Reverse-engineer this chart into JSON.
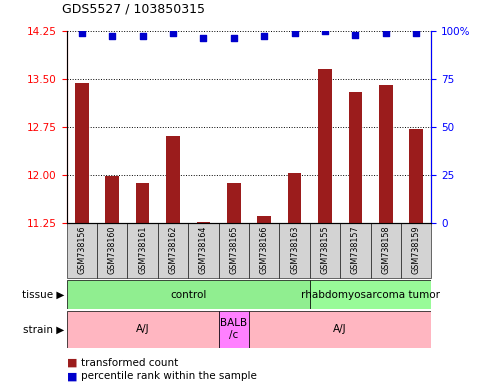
{
  "title": "GDS5527 / 103850315",
  "samples": [
    "GSM738156",
    "GSM738160",
    "GSM738161",
    "GSM738162",
    "GSM738164",
    "GSM738165",
    "GSM738166",
    "GSM738163",
    "GSM738155",
    "GSM738157",
    "GSM738158",
    "GSM738159"
  ],
  "bar_values": [
    13.43,
    11.98,
    11.87,
    12.6,
    11.26,
    11.87,
    11.35,
    12.03,
    13.65,
    13.3,
    13.4,
    12.72
  ],
  "dot_values": [
    99,
    97,
    97,
    99,
    96,
    96,
    97,
    99,
    100,
    98,
    99,
    99
  ],
  "ylim_left": [
    11.25,
    14.25
  ],
  "ylim_right": [
    0,
    100
  ],
  "yticks_left": [
    11.25,
    12.0,
    12.75,
    13.5,
    14.25
  ],
  "yticks_right": [
    0,
    25,
    50,
    75,
    100
  ],
  "bar_color": "#9B1C1C",
  "dot_color": "#0000CC",
  "tissue_groups": [
    {
      "label": "control",
      "start": 0,
      "end": 8,
      "color": "#90EE90"
    },
    {
      "label": "rhabdomyosarcoma tumor",
      "start": 8,
      "end": 12,
      "color": "#98FB98"
    }
  ],
  "strain_groups": [
    {
      "label": "A/J",
      "start": 0,
      "end": 5,
      "color": "#FFB6C1"
    },
    {
      "label": "BALB\n/c",
      "start": 5,
      "end": 6,
      "color": "#FF80FF"
    },
    {
      "label": "A/J",
      "start": 6,
      "end": 12,
      "color": "#FFB6C1"
    }
  ],
  "legend_bar_label": "transformed count",
  "legend_dot_label": "percentile rank within the sample",
  "tissue_label": "tissue",
  "strain_label": "strain"
}
